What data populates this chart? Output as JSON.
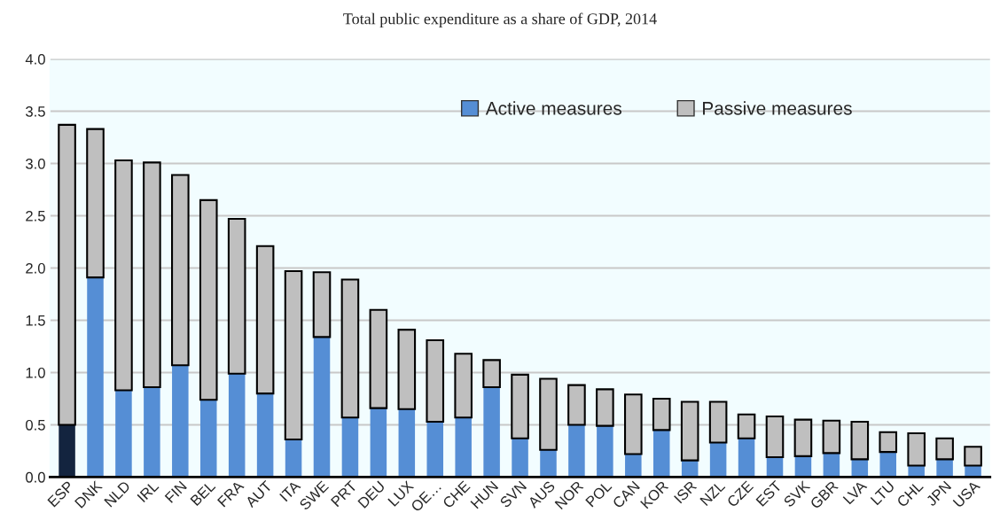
{
  "chart_data": {
    "type": "bar",
    "title": "Total public expenditure as a share of GDP, 2014",
    "categories": [
      "ESP",
      "DNK",
      "NLD",
      "IRL",
      "FIN",
      "BEL",
      "FRA",
      "AUT",
      "ITA",
      "SWE",
      "PRT",
      "DEU",
      "LUX",
      "OE…",
      "CHE",
      "HUN",
      "SVN",
      "AUS",
      "NOR",
      "POL",
      "CAN",
      "KOR",
      "ISR",
      "NZL",
      "CZE",
      "EST",
      "SVK",
      "GBR",
      "LVA",
      "LTU",
      "CHL",
      "JPN",
      "USA"
    ],
    "stacked": true,
    "series": [
      {
        "name": "Active measures",
        "color": "#558ed5",
        "colors": [
          "#13243f",
          "#558ed5",
          "#558ed5",
          "#558ed5",
          "#558ed5",
          "#558ed5",
          "#558ed5",
          "#558ed5",
          "#558ed5",
          "#558ed5",
          "#558ed5",
          "#558ed5",
          "#558ed5",
          "#558ed5",
          "#558ed5",
          "#558ed5",
          "#558ed5",
          "#558ed5",
          "#558ed5",
          "#558ed5",
          "#558ed5",
          "#558ed5",
          "#558ed5",
          "#558ed5",
          "#558ed5",
          "#558ed5",
          "#558ed5",
          "#558ed5",
          "#558ed5",
          "#558ed5",
          "#558ed5",
          "#558ed5",
          "#558ed5"
        ],
        "values": [
          0.5,
          1.91,
          0.83,
          0.86,
          1.07,
          0.74,
          0.99,
          0.8,
          0.36,
          1.34,
          0.57,
          0.66,
          0.65,
          0.53,
          0.57,
          0.86,
          0.37,
          0.26,
          0.5,
          0.49,
          0.22,
          0.45,
          0.16,
          0.33,
          0.37,
          0.19,
          0.2,
          0.23,
          0.17,
          0.24,
          0.11,
          0.17,
          0.11
        ]
      },
      {
        "name": "Passive measures",
        "color": "#bfbfbf",
        "values": [
          2.87,
          1.42,
          2.2,
          2.15,
          1.82,
          1.91,
          1.48,
          1.41,
          1.61,
          0.62,
          1.32,
          0.94,
          0.76,
          0.78,
          0.61,
          0.26,
          0.61,
          0.68,
          0.38,
          0.35,
          0.57,
          0.3,
          0.56,
          0.39,
          0.23,
          0.39,
          0.35,
          0.31,
          0.36,
          0.19,
          0.31,
          0.2,
          0.18
        ]
      }
    ],
    "ylim": [
      0,
      4.0
    ],
    "yticks": [
      {
        "value": 0,
        "label": "0.0"
      },
      {
        "value": 0.5,
        "label": "0.5"
      },
      {
        "value": 1,
        "label": "1.0"
      },
      {
        "value": 1.5,
        "label": "1.5"
      },
      {
        "value": 2,
        "label": "2.0"
      },
      {
        "value": 2.5,
        "label": "2.5"
      },
      {
        "value": 3,
        "label": "3.0"
      },
      {
        "value": 3.5,
        "label": "3.5"
      },
      {
        "value": 4,
        "label": "4.0"
      }
    ],
    "grid": "y",
    "legend": "top right"
  }
}
